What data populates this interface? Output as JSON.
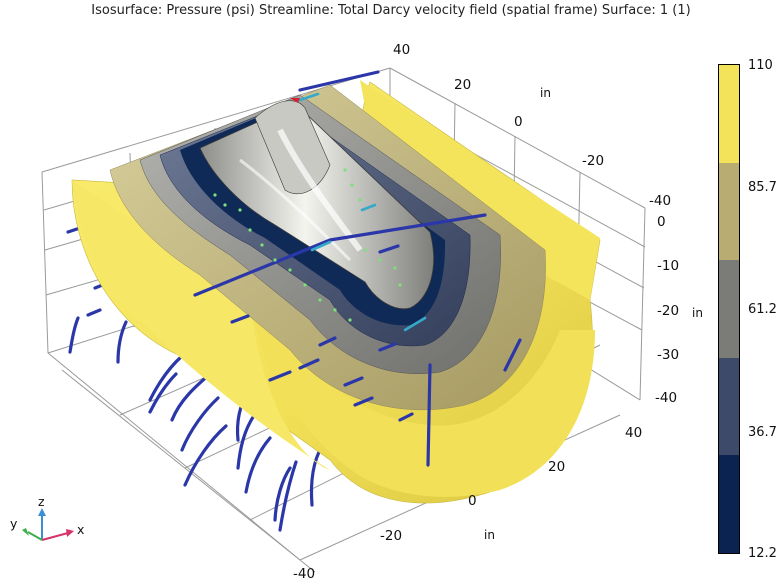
{
  "title": "Isosurface: Pressure (psi)  Streamline: Total Darcy velocity field (spatial frame)  Surface: 1 (1)",
  "axes": {
    "back_y_ticks": [
      "40",
      "20",
      "0",
      "-20",
      "-40"
    ],
    "z_ticks": [
      "0",
      "-10",
      "-20",
      "-30",
      "-40"
    ],
    "front_y_ticks": [
      "40",
      "20",
      "0",
      "-20",
      "-40"
    ],
    "unit": "in"
  },
  "colorbar": {
    "labels": [
      "110",
      "85.7",
      "61.2",
      "36.7",
      "12.2"
    ],
    "colors": [
      "#f2e35b",
      "#b8ac72",
      "#7b7b78",
      "#3d4a6a",
      "#0b2350"
    ]
  },
  "triad": {
    "x": "x",
    "y": "y",
    "z": "z"
  },
  "colors": {
    "streamline": "#2b37a8",
    "surface_yellow": "#f5e45a",
    "surface_tan": "#c2b67e",
    "surface_gray": "#8a8a88",
    "surface_slate": "#4a5675",
    "surface_navy": "#0f2a57"
  }
}
